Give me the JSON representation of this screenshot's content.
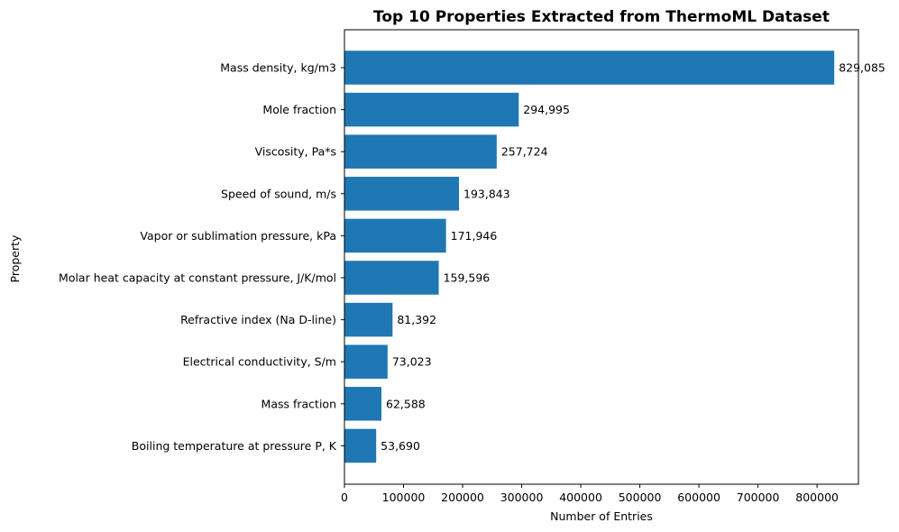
{
  "chart_data": {
    "type": "bar",
    "orientation": "horizontal",
    "title": "Top 10 Properties Extracted from ThermoML Dataset",
    "xlabel": "Number of Entries",
    "ylabel": "Property",
    "xlim": [
      0,
      870000
    ],
    "xticks": [
      0,
      100000,
      200000,
      300000,
      400000,
      500000,
      600000,
      700000,
      800000
    ],
    "xtick_labels": [
      "0",
      "100000",
      "200000",
      "300000",
      "400000",
      "500000",
      "600000",
      "700000",
      "800000"
    ],
    "grid": false,
    "bar_color": "#1f77b4",
    "categories": [
      "Mass density, kg/m3",
      "Mole fraction",
      "Viscosity, Pa*s",
      "Speed of sound, m/s",
      "Vapor or sublimation pressure, kPa",
      "Molar heat capacity at constant pressure, J/K/mol",
      "Refractive index (Na D-line)",
      "Electrical conductivity, S/m",
      "Mass fraction",
      "Boiling temperature at pressure P, K"
    ],
    "values": [
      829085,
      294995,
      257724,
      193843,
      171946,
      159596,
      81392,
      73023,
      62588,
      53690
    ],
    "value_labels": [
      "829,085",
      "294,995",
      "257,724",
      "193,843",
      "171,946",
      "159,596",
      "81,392",
      "73,023",
      "62,588",
      "53,690"
    ]
  }
}
